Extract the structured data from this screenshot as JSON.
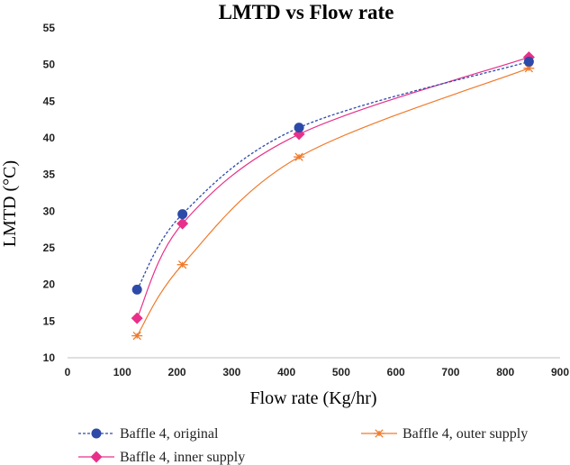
{
  "chart_data": {
    "type": "line",
    "title": "LMTD vs Flow rate",
    "xlabel": "Flow rate (Kg/hr)",
    "ylabel": "LMTD (°C)",
    "xlim": [
      0,
      900
    ],
    "ylim": [
      10,
      55
    ],
    "xticks": [
      0,
      100,
      200,
      300,
      400,
      500,
      600,
      700,
      800,
      900
    ],
    "yticks": [
      10,
      15,
      20,
      25,
      30,
      35,
      40,
      45,
      50,
      55
    ],
    "grid": false,
    "legend_position": "bottom",
    "series": [
      {
        "name": "Baffle 4, original",
        "color": "#2E4AA8",
        "line_style": "dashed",
        "marker": "circle",
        "x": [
          127,
          210,
          423,
          843
        ],
        "y": [
          19.3,
          29.6,
          41.4,
          50.4
        ]
      },
      {
        "name": "Baffle 4, inner supply",
        "color": "#E8308A",
        "line_style": "solid",
        "marker": "diamond",
        "x": [
          127,
          210,
          423,
          843
        ],
        "y": [
          15.4,
          28.3,
          40.5,
          51.0
        ]
      },
      {
        "name": "Baffle 4, outer supply",
        "color": "#F07A2A",
        "line_style": "solid",
        "marker": "asterisk",
        "x": [
          127,
          210,
          423,
          843
        ],
        "y": [
          13.0,
          22.7,
          37.4,
          49.5
        ]
      }
    ]
  }
}
